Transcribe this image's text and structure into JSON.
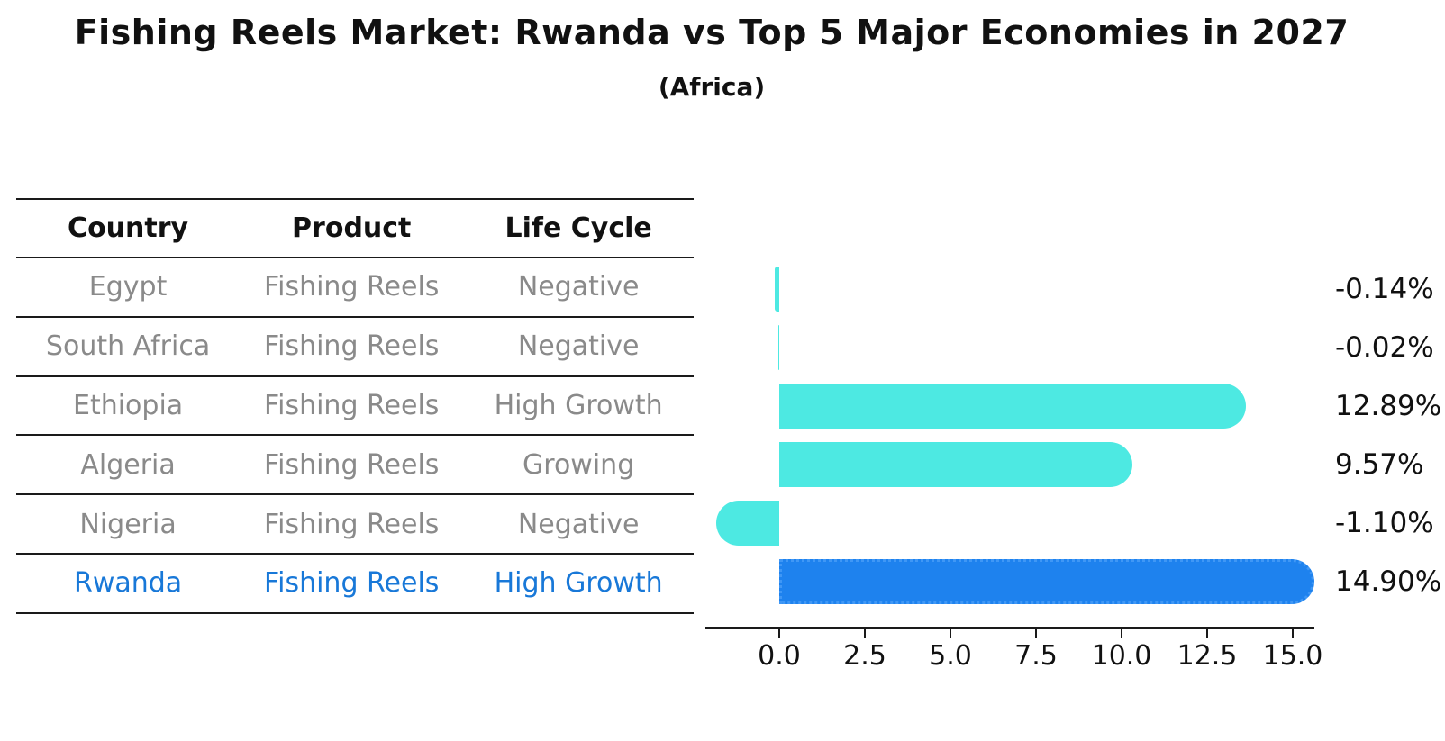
{
  "title": "Fishing Reels Market: Rwanda vs Top 5 Major Economies in 2027",
  "subtitle": "(Africa)",
  "table": {
    "headers": [
      "Country",
      "Product",
      "Life Cycle"
    ],
    "rows": [
      {
        "country": "Egypt",
        "product": "Fishing Reels",
        "life_cycle": "Negative",
        "highlight": false
      },
      {
        "country": "South Africa",
        "product": "Fishing Reels",
        "life_cycle": "Negative",
        "highlight": false
      },
      {
        "country": "Ethiopia",
        "product": "Fishing Reels",
        "life_cycle": "High Growth",
        "highlight": false
      },
      {
        "country": "Algeria",
        "product": "Fishing Reels",
        "life_cycle": "Growing",
        "highlight": false
      },
      {
        "country": "Nigeria",
        "product": "Fishing Reels",
        "life_cycle": "Negative",
        "highlight": false
      },
      {
        "country": "Rwanda",
        "product": "Fishing Reels",
        "life_cycle": "High Growth",
        "highlight": true
      }
    ]
  },
  "chart_data": {
    "type": "bar",
    "orientation": "horizontal",
    "title": "Fishing Reels Market: Rwanda vs Top 5 Major Economies in 2027",
    "subtitle": "(Africa)",
    "categories": [
      "Egypt",
      "South Africa",
      "Ethiopia",
      "Algeria",
      "Nigeria",
      "Rwanda"
    ],
    "values": [
      -0.14,
      -0.02,
      12.89,
      9.57,
      -1.1,
      14.9
    ],
    "value_labels": [
      "-0.14%",
      "-0.02%",
      "12.89%",
      "9.57%",
      "-1.10%",
      "14.90%"
    ],
    "xticks": [
      0.0,
      2.5,
      5.0,
      7.5,
      10.0,
      12.5,
      15.0
    ],
    "xtick_labels": [
      "0.0",
      "2.5",
      "5.0",
      "7.5",
      "10.0",
      "12.5",
      "15.0"
    ],
    "xlim": [
      -2.2,
      15.9
    ],
    "grid": false,
    "legend": "none",
    "highlight_index": 5,
    "bar_color": "#4DE9E2",
    "highlight_color": "#1E82EE",
    "highlight_border_color": "#3f97f5"
  },
  "colors": {
    "text_dark": "#111111",
    "row_text": "#8a8a8a",
    "highlight_text": "#1878d8",
    "line": "#1a1a1a"
  }
}
